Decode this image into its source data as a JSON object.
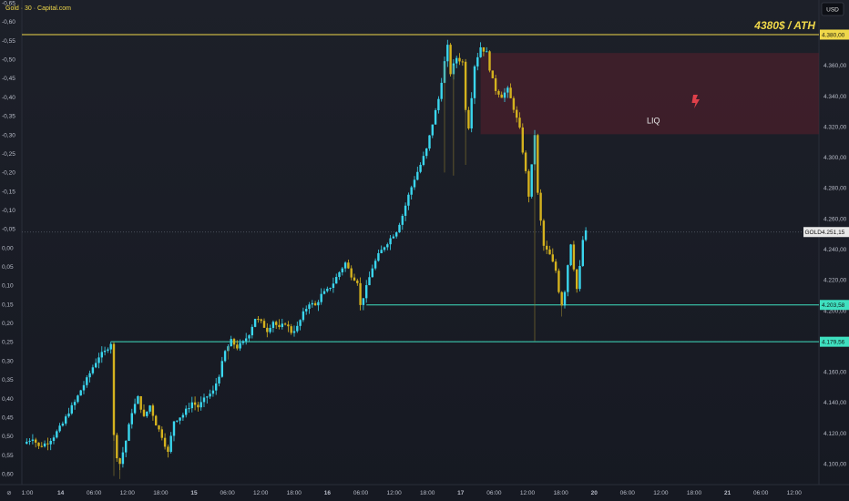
{
  "header": {
    "symbol_info": "Gold · 30 · Capital.com",
    "currency_button": "USD"
  },
  "annotations": {
    "ath_label": "4380$ / ATH",
    "liq_label": "LIQ"
  },
  "colors": {
    "background": "#1b1e27",
    "bull": "#3ad6ee",
    "bear": "#d4b21e",
    "ath_line": "#f0d84a",
    "support_line": "#3fe0c0",
    "liq_zone": "#5a1f2c",
    "bolt": "#e0404a"
  },
  "chart_data": {
    "type": "candlestick",
    "symbol": "Gold",
    "interval": "30",
    "broker": "Capital.com",
    "currency": "USD",
    "y_axis_right": {
      "min": 4090,
      "max": 4395,
      "ticks": [
        "4.100,00",
        "4.120,00",
        "4.140,00",
        "4.160,00",
        "4.180,00",
        "4.200,00",
        "4.220,00",
        "4.240,00",
        "4.260,00",
        "4.280,00",
        "4.300,00",
        "4.320,00",
        "4.340,00",
        "4.360,00",
        "4.380,00"
      ]
    },
    "y_axis_left": {
      "ticks": [
        "-0,65",
        "-0,60",
        "-0,55",
        "-0,50",
        "-0,45",
        "-0,40",
        "-0,35",
        "-0,30",
        "-0,25",
        "-0,20",
        "-0,15",
        "-0,10",
        "-0,05",
        "0,00",
        "0,05",
        "0,10",
        "0,15",
        "0,20",
        "0,25",
        "0,30",
        "0,35",
        "0,40",
        "0,45",
        "0,50",
        "0,55",
        "0,60"
      ]
    },
    "x_axis_ticks": [
      "1:00",
      "14",
      "06:00",
      "12:00",
      "18:00",
      "15",
      "06:00",
      "12:00",
      "18:00",
      "16",
      "06:00",
      "12:00",
      "18:00",
      "17",
      "06:00",
      "12:00",
      "18:00",
      "20",
      "06:00",
      "12:00",
      "18:00",
      "21",
      "06:00",
      "12:00"
    ],
    "horizontal_levels": [
      {
        "price": 4380.0,
        "label": "4.380,00",
        "style": "ath"
      },
      {
        "price": 4251.15,
        "label": "4.251,15",
        "tag": "GOLD",
        "style": "last"
      },
      {
        "price": 4203.58,
        "label": "4.203,58",
        "style": "support"
      },
      {
        "price": 4179.56,
        "label": "4.179,56",
        "style": "support"
      }
    ],
    "zones": [
      {
        "name": "LIQ",
        "price_low": 4315,
        "price_high": 4368
      }
    ],
    "last_price": 4251.15,
    "path": [
      [
        0,
        4113
      ],
      [
        3,
        4117
      ],
      [
        5,
        4111
      ],
      [
        8,
        4114
      ],
      [
        10,
        4118
      ],
      [
        13,
        4126
      ],
      [
        15,
        4134
      ],
      [
        17,
        4140
      ],
      [
        19,
        4148
      ],
      [
        21,
        4155
      ],
      [
        23,
        4163
      ],
      [
        25,
        4170
      ],
      [
        27,
        4173
      ],
      [
        29,
        4179
      ],
      [
        30,
        4118
      ],
      [
        31,
        4105
      ],
      [
        32,
        4100
      ],
      [
        34,
        4115
      ],
      [
        36,
        4134
      ],
      [
        38,
        4143
      ],
      [
        40,
        4130
      ],
      [
        42,
        4138
      ],
      [
        44,
        4126
      ],
      [
        46,
        4118
      ],
      [
        48,
        4107
      ],
      [
        50,
        4128
      ],
      [
        53,
        4132
      ],
      [
        56,
        4140
      ],
      [
        58,
        4137
      ],
      [
        61,
        4144
      ],
      [
        63,
        4147
      ],
      [
        65,
        4158
      ],
      [
        67,
        4173
      ],
      [
        69,
        4180
      ],
      [
        71,
        4176
      ],
      [
        73,
        4179
      ],
      [
        75,
        4185
      ],
      [
        77,
        4195
      ],
      [
        79,
        4192
      ],
      [
        81,
        4187
      ],
      [
        83,
        4193
      ],
      [
        85,
        4188
      ],
      [
        87,
        4192
      ],
      [
        89,
        4186
      ],
      [
        91,
        4189
      ],
      [
        93,
        4198
      ],
      [
        95,
        4205
      ],
      [
        97,
        4203
      ],
      [
        99,
        4210
      ],
      [
        101,
        4213
      ],
      [
        103,
        4218
      ],
      [
        105,
        4225
      ],
      [
        107,
        4231
      ],
      [
        109,
        4223
      ],
      [
        111,
        4219
      ],
      [
        112,
        4203
      ],
      [
        114,
        4215
      ],
      [
        116,
        4228
      ],
      [
        118,
        4236
      ],
      [
        120,
        4242
      ],
      [
        122,
        4247
      ],
      [
        124,
        4252
      ],
      [
        126,
        4262
      ],
      [
        128,
        4275
      ],
      [
        130,
        4286
      ],
      [
        132,
        4295
      ],
      [
        134,
        4305
      ],
      [
        136,
        4322
      ],
      [
        138,
        4338
      ],
      [
        140,
        4362
      ],
      [
        141,
        4372
      ],
      [
        142,
        4355
      ],
      [
        144,
        4365
      ],
      [
        146,
        4362
      ],
      [
        147,
        4332
      ],
      [
        148,
        4320
      ],
      [
        149,
        4340
      ],
      [
        150,
        4360
      ],
      [
        152,
        4372
      ],
      [
        154,
        4368
      ],
      [
        155,
        4358
      ],
      [
        156,
        4350
      ],
      [
        157,
        4344
      ],
      [
        159,
        4340
      ],
      [
        161,
        4344
      ],
      [
        163,
        4332
      ],
      [
        165,
        4318
      ],
      [
        167,
        4290
      ],
      [
        168,
        4275
      ],
      [
        169,
        4294
      ],
      [
        170,
        4315
      ],
      [
        171,
        4276
      ],
      [
        172,
        4258
      ],
      [
        173,
        4242
      ],
      [
        175,
        4236
      ],
      [
        177,
        4226
      ],
      [
        178,
        4213
      ],
      [
        179,
        4204
      ],
      [
        180,
        4213
      ],
      [
        181,
        4230
      ],
      [
        182,
        4244
      ],
      [
        183,
        4228
      ],
      [
        184,
        4214
      ],
      [
        185,
        4228
      ],
      [
        186,
        4246
      ],
      [
        187,
        4251
      ]
    ]
  }
}
